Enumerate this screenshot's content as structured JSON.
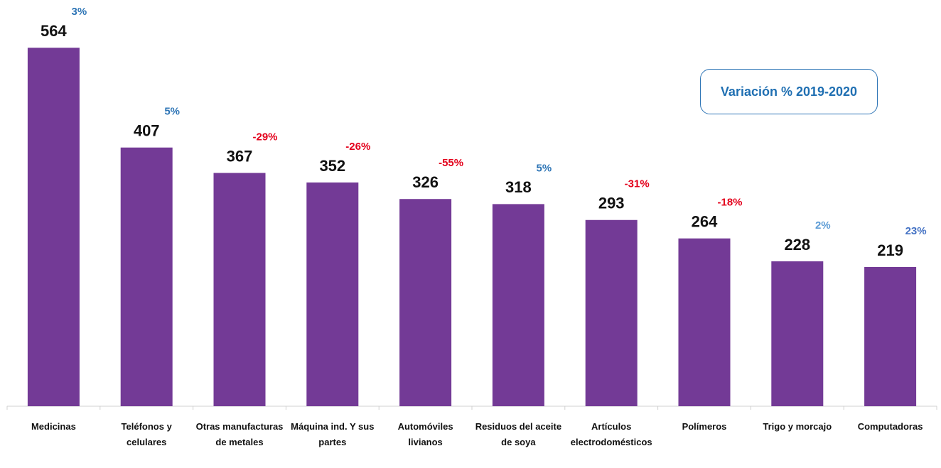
{
  "chart_data": {
    "type": "bar",
    "categories": [
      "Medicinas",
      "Teléfonos y celulares",
      "Otras manufacturas de metales",
      "Máquina ind. Y sus partes",
      "Automóviles livianos",
      "Residuos del aceite de soya",
      "Artículos electrodomésticos",
      "Polímeros",
      "Trigo y morcajo",
      "Computadoras"
    ],
    "values": [
      564,
      407,
      367,
      352,
      326,
      318,
      293,
      264,
      228,
      219
    ],
    "color": "#733a96",
    "ylim": [
      0,
      600
    ],
    "annotation": "Variación % 2019-2020",
    "variations": [
      3,
      5,
      -29,
      -26,
      -55,
      5,
      -31,
      -18,
      2,
      23
    ],
    "variation_labels": [
      "3%",
      "5%",
      "-29%",
      "-26%",
      "-55%",
      "5%",
      "-31%",
      "-18%",
      "2%",
      "23%"
    ],
    "variation_colors": [
      "#2e75b6",
      "#2e75b6",
      "#e3001b",
      "#e3001b",
      "#e3001b",
      "#2e75b6",
      "#e3001b",
      "#e3001b",
      "#5b9bd5",
      "#4472c4"
    ]
  }
}
